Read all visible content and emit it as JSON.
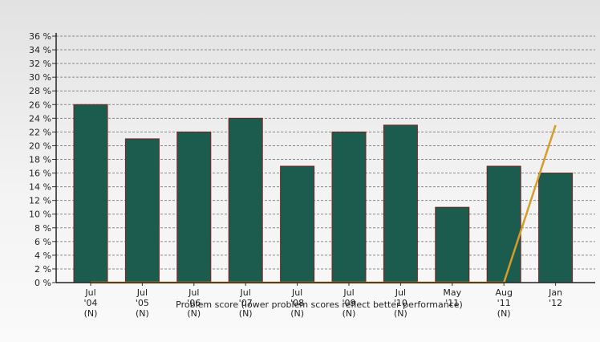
{
  "chart_data": {
    "type": "bar",
    "title": "",
    "xlabel": "Problem score (lower problem scores reflect better performance)",
    "ylabel": "",
    "ylim": [
      0,
      36
    ],
    "ytick_step": 2,
    "ytick_suffix": " %",
    "grid": true,
    "legend": "none",
    "categories": [
      [
        "Jul",
        "'04",
        "(N)"
      ],
      [
        "Jul",
        "'05",
        "(N)"
      ],
      [
        "Jul",
        "'06",
        "(N)"
      ],
      [
        "Jul",
        "'07",
        "(N)"
      ],
      [
        "Jul",
        "'08",
        "(N)"
      ],
      [
        "Jul",
        "'09",
        "(N)"
      ],
      [
        "Jul",
        "'10",
        "(N)"
      ],
      [
        "May",
        "'11",
        ""
      ],
      [
        "Aug",
        "'11",
        "(N)"
      ],
      [
        "Jan",
        "'12",
        ""
      ]
    ],
    "series": [
      {
        "type": "bar",
        "color": "#1c5c4e",
        "edge_color": "#7a1f1f",
        "values": [
          26,
          21,
          22,
          24,
          17,
          22,
          23,
          11,
          17,
          16
        ]
      },
      {
        "type": "line",
        "color": "#d89a2a",
        "values": [
          0,
          0,
          0,
          0,
          0,
          0,
          0,
          0,
          0,
          23
        ]
      }
    ]
  }
}
